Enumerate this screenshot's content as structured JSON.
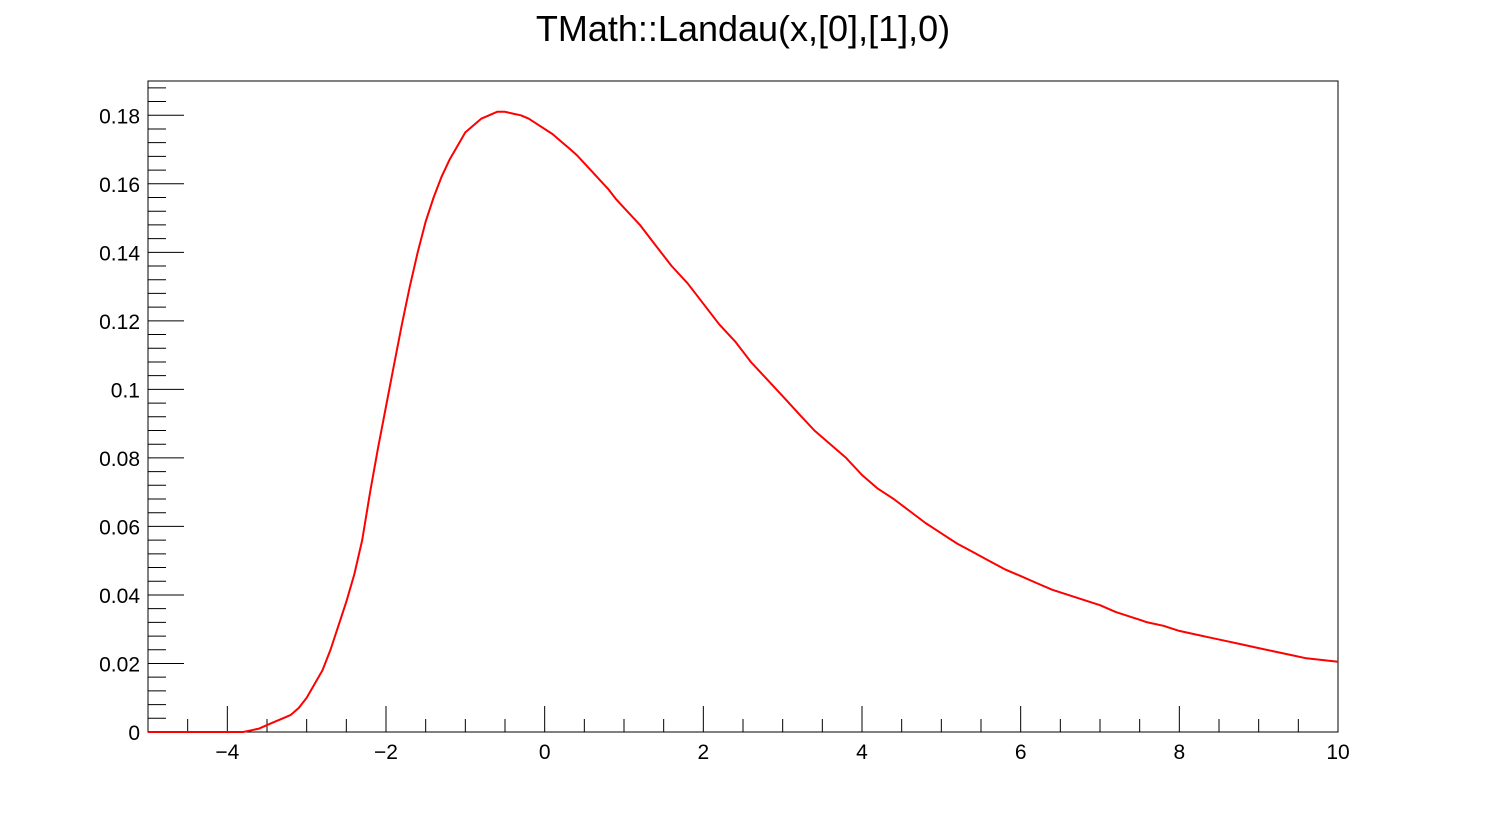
{
  "chart_data": {
    "type": "line",
    "title": "TMath::Landau(x,[0],[1],0)",
    "xlabel": "",
    "ylabel": "",
    "xlim": [
      -5,
      10
    ],
    "ylim": [
      0,
      0.19
    ],
    "x_ticks": [
      -4,
      -2,
      0,
      2,
      4,
      6,
      8,
      10
    ],
    "x_tick_labels": [
      "−4",
      "−2",
      "0",
      "2",
      "4",
      "6",
      "8",
      "10"
    ],
    "y_ticks": [
      0,
      0.02,
      0.04,
      0.06,
      0.08,
      0.1,
      0.12,
      0.14,
      0.16,
      0.18
    ],
    "y_tick_labels": [
      "0",
      "0.02",
      "0.04",
      "0.06",
      "0.08",
      "0.1",
      "0.12",
      "0.14",
      "0.16",
      "0.18"
    ],
    "grid": false,
    "series": [
      {
        "color": "#ff0000",
        "x": [
          -5,
          -4.0,
          -3.8,
          -3.7,
          -3.6,
          -3.5,
          -3.4,
          -3.3,
          -3.2,
          -3.1,
          -3.0,
          -2.9,
          -2.8,
          -2.7,
          -2.6,
          -2.5,
          -2.4,
          -2.3,
          -2.2,
          -2.1,
          -2.0,
          -1.9,
          -1.8,
          -1.7,
          -1.6,
          -1.5,
          -1.4,
          -1.3,
          -1.2,
          -1.1,
          -1.0,
          -0.9,
          -0.8,
          -0.7,
          -0.6,
          -0.5,
          -0.4,
          -0.3,
          -0.2,
          -0.1,
          0.0,
          0.1,
          0.2,
          0.3,
          0.4,
          0.5,
          0.6,
          0.7,
          0.8,
          0.9,
          1.0,
          1.2,
          1.4,
          1.6,
          1.8,
          2.0,
          2.2,
          2.4,
          2.5,
          2.6,
          2.8,
          3.0,
          3.2,
          3.4,
          3.6,
          3.8,
          4.0,
          4.2,
          4.4,
          4.6,
          4.8,
          5.0,
          5.2,
          5.4,
          5.6,
          5.8,
          6.0,
          6.2,
          6.4,
          6.6,
          6.8,
          7.0,
          7.2,
          7.4,
          7.6,
          7.8,
          8.0,
          8.2,
          8.4,
          8.6,
          8.8,
          9.0,
          9.2,
          9.4,
          9.6,
          9.8,
          10.0
        ],
        "y": [
          0,
          0,
          0.0,
          0.0005,
          0.001,
          0.002,
          0.003,
          0.004,
          0.005,
          0.007,
          0.01,
          0.014,
          0.018,
          0.024,
          0.031,
          0.038,
          0.046,
          0.056,
          0.07,
          0.083,
          0.095,
          0.107,
          0.119,
          0.13,
          0.14,
          0.149,
          0.156,
          0.162,
          0.167,
          0.171,
          0.175,
          0.177,
          0.179,
          0.18,
          0.181,
          0.181,
          0.1805,
          0.18,
          0.179,
          0.1775,
          0.176,
          0.1745,
          0.1725,
          0.1705,
          0.1685,
          0.166,
          0.1635,
          0.161,
          0.1585,
          0.1555,
          0.153,
          0.148,
          0.142,
          0.136,
          0.131,
          0.125,
          0.119,
          0.114,
          0.111,
          0.108,
          0.103,
          0.098,
          0.093,
          0.088,
          0.084,
          0.08,
          0.075,
          0.071,
          0.068,
          0.0645,
          0.061,
          0.058,
          0.055,
          0.0525,
          0.05,
          0.0475,
          0.0455,
          0.0435,
          0.0415,
          0.04,
          0.0385,
          0.037,
          0.035,
          0.0335,
          0.032,
          0.031,
          0.0295,
          0.0285,
          0.0275,
          0.0265,
          0.0255,
          0.0245,
          0.0235,
          0.0225,
          0.0215,
          0.021,
          0.0205
        ]
      }
    ]
  }
}
